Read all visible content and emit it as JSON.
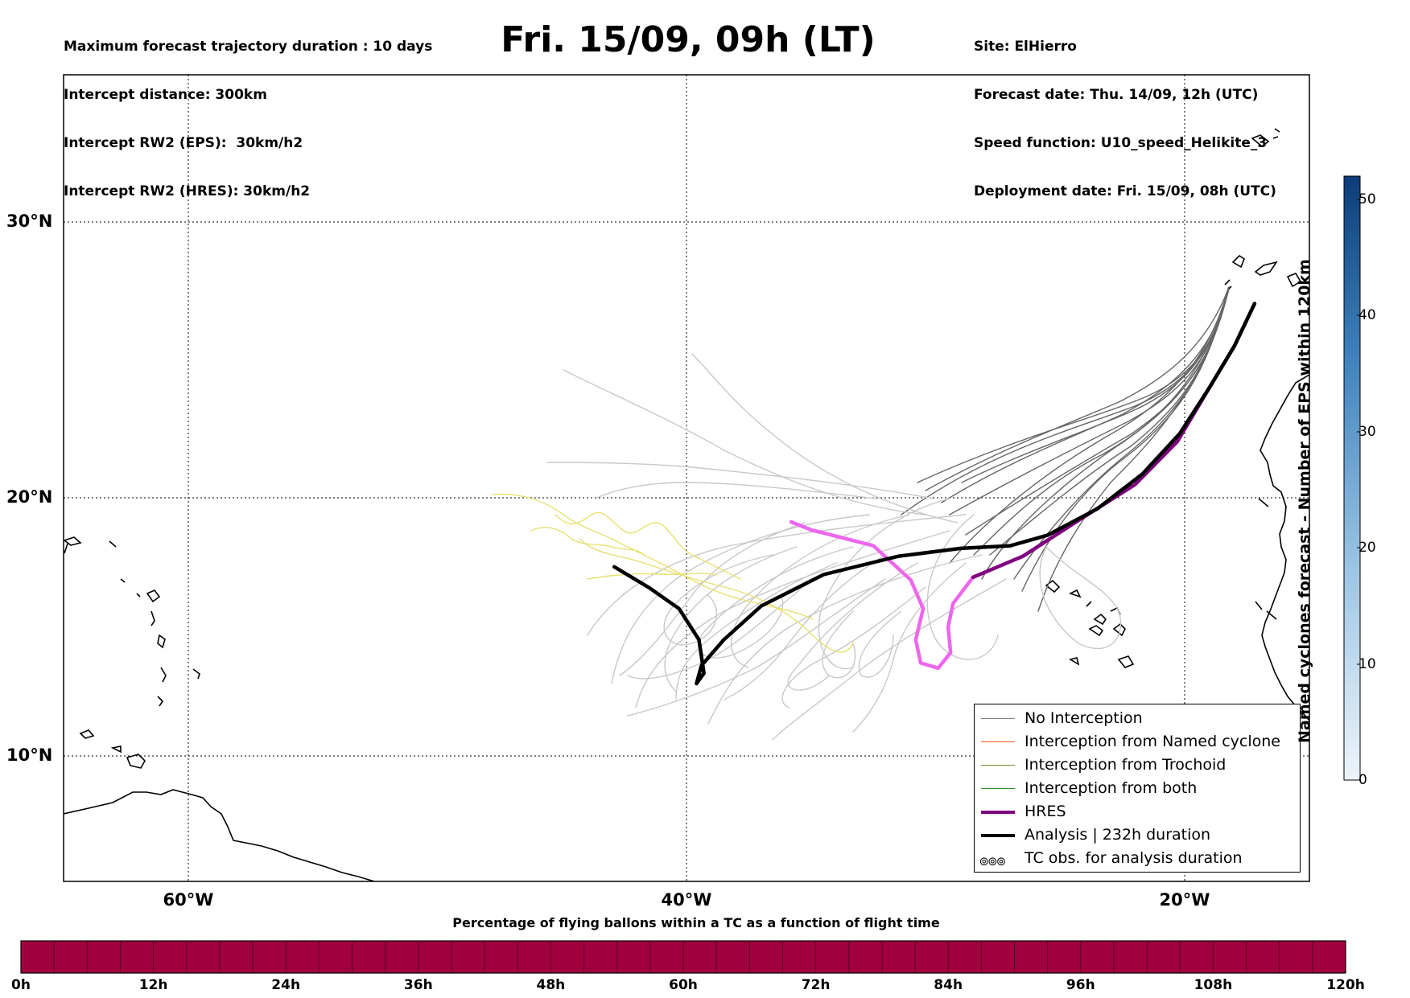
{
  "header": {
    "title": "Fri. 15/09, 09h (LT)",
    "left_info": [
      "Maximum forecast trajectory duration : 10 days",
      "Intercept distance: 300km",
      "Intercept RW2 (EPS):  30km/h2",
      "Intercept RW2 (HRES): 30km/h2"
    ],
    "right_info": [
      "Site: ElHierro",
      "Forecast date: Thu. 14/09, 12h (UTC)",
      "Speed function: U10_speed_Helikite_3",
      "Deployment date: Fri. 15/09, 08h (UTC)"
    ]
  },
  "map": {
    "lat_labels": [
      "30°N",
      "20°N",
      "10°N"
    ],
    "lon_labels": [
      "60°W",
      "40°W",
      "20°W"
    ],
    "lon_range": [
      -65,
      -15
    ],
    "lat_range": [
      5.5,
      35.3
    ],
    "grid": "dotted"
  },
  "legend": {
    "placement": "lower-right",
    "items": [
      {
        "label": "No Interception",
        "color": "#7f7f7f"
      },
      {
        "label": "Interception from Named cyclone",
        "color": "#ff5a1a"
      },
      {
        "label": "Interception from Trochoid",
        "color": "#808020"
      },
      {
        "label": "Interception from both",
        "color": "#2e8b2e"
      },
      {
        "label": "HRES",
        "color": "#800080"
      },
      {
        "label": "Analysis | 232h duration",
        "color": "#000000"
      },
      {
        "label": "TC obs. for analysis duration",
        "glyph": "๏๏๏"
      }
    ]
  },
  "colorbar": {
    "title": "Named cyclones forecast - Number of EPS within 120km",
    "ticks": [
      "0",
      "10",
      "20",
      "30",
      "40",
      "50"
    ],
    "range": [
      0,
      52
    ],
    "color_low": "#e6f0fa",
    "color_high": "#0b3d7a"
  },
  "hbar": {
    "title": "Percentage of flying ballons within a TC as a function of flight time",
    "ticks": [
      "0h",
      "12h",
      "24h",
      "36h",
      "48h",
      "60h",
      "72h",
      "84h",
      "96h",
      "108h",
      "120h"
    ],
    "color": "#a0003c"
  },
  "chart_data": {
    "type": "line",
    "series": [
      {
        "name": "HRES",
        "color": "#800080",
        "points": [
          [
            -17.2,
            27.5
          ],
          [
            -18.0,
            26.0
          ],
          [
            -19.0,
            24.5
          ],
          [
            -20.3,
            22.5
          ],
          [
            -22.0,
            20.9
          ],
          [
            -24.2,
            19.6
          ],
          [
            -26.5,
            18.2
          ],
          [
            -28.5,
            17.4
          ]
        ]
      },
      {
        "name": "Analysis | 232h duration",
        "color": "#000000",
        "points": [
          [
            -17.2,
            27.5
          ],
          [
            -18.0,
            26.0
          ],
          [
            -19.0,
            24.5
          ],
          [
            -20.2,
            22.8
          ],
          [
            -21.7,
            21.3
          ],
          [
            -23.5,
            20.0
          ],
          [
            -25.5,
            19.0
          ],
          [
            -27.0,
            18.6
          ],
          [
            -29.0,
            18.5
          ],
          [
            -31.5,
            18.2
          ],
          [
            -34.5,
            17.5
          ],
          [
            -37.0,
            16.3
          ],
          [
            -38.5,
            15.0
          ],
          [
            -39.4,
            14.0
          ],
          [
            -39.6,
            13.3
          ],
          [
            -39.3,
            13.7
          ],
          [
            -39.5,
            15.0
          ],
          [
            -40.3,
            16.2
          ],
          [
            -41.5,
            17.0
          ],
          [
            -42.9,
            17.8
          ]
        ]
      },
      {
        "name": "HRES early segment",
        "color": "#ee66ee",
        "points": [
          [
            -28.5,
            17.4
          ],
          [
            -29.3,
            16.4
          ],
          [
            -29.5,
            15.5
          ],
          [
            -29.4,
            14.5
          ],
          [
            -29.9,
            13.9
          ],
          [
            -30.6,
            14.1
          ],
          [
            -30.8,
            15.0
          ],
          [
            -30.5,
            16.2
          ],
          [
            -31.0,
            17.3
          ],
          [
            -32.5,
            18.6
          ],
          [
            -35.0,
            19.2
          ],
          [
            -35.8,
            19.5
          ]
        ]
      }
    ]
  }
}
